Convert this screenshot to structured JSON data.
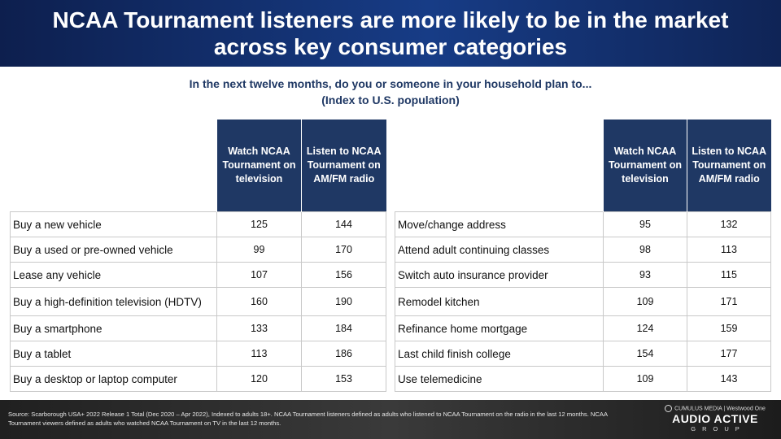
{
  "header": {
    "title": "NCAA Tournament listeners are more likely to be in the market across key consumer categories"
  },
  "subtitle": {
    "line1": "In the next twelve months, do you or someone in your household plan to...",
    "line2": "(Index to U.S. population)"
  },
  "columns": {
    "tv": "Watch NCAA Tournament on television",
    "radio": "Listen to NCAA Tournament on AM/FM radio"
  },
  "left_table": {
    "rows": [
      {
        "label": "Buy a new vehicle",
        "tv": "125",
        "radio": "144"
      },
      {
        "label": "Buy a used or pre-owned vehicle",
        "tv": "99",
        "radio": "170"
      },
      {
        "label": "Lease any vehicle",
        "tv": "107",
        "radio": "156"
      },
      {
        "label": "Buy a high-definition television (HDTV)",
        "tv": "160",
        "radio": "190"
      },
      {
        "label": "Buy a smartphone",
        "tv": "133",
        "radio": "184"
      },
      {
        "label": "Buy a tablet",
        "tv": "113",
        "radio": "186"
      },
      {
        "label": "Buy a desktop or laptop computer",
        "tv": "120",
        "radio": "153"
      }
    ]
  },
  "right_table": {
    "rows": [
      {
        "label": "Move/change address",
        "tv": "95",
        "radio": "132"
      },
      {
        "label": "Attend adult continuing classes",
        "tv": "98",
        "radio": "113"
      },
      {
        "label": "Switch auto insurance provider",
        "tv": "93",
        "radio": "115"
      },
      {
        "label": "Remodel kitchen",
        "tv": "109",
        "radio": "171"
      },
      {
        "label": "Refinance home mortgage",
        "tv": "124",
        "radio": "159"
      },
      {
        "label": "Last child finish college",
        "tv": "154",
        "radio": "177"
      },
      {
        "label": "Use telemedicine",
        "tv": "109",
        "radio": "143"
      }
    ]
  },
  "footer": {
    "source": "Source: Scarborough USA+ 2022 Release 1 Total (Dec 2020 – Apr 2022), Indexed to adults 18+. NCAA Tournament listeners defined as adults who listened to NCAA Tournament on the radio in the last 12 months. NCAA Tournament viewers defined as adults who watched NCAA Tournament on TV in the last 12 months.",
    "brand_top_left": "CUMULUS MEDIA",
    "brand_top_right": "Westwood One",
    "brand_name": "AUDIO ACTIVE",
    "brand_group": "GROUP"
  },
  "colors": {
    "header_bg": "#173c86",
    "table_header_bg": "#1f3864",
    "subtitle_text": "#1f3864",
    "footer_bg": "#2b2b2b"
  }
}
